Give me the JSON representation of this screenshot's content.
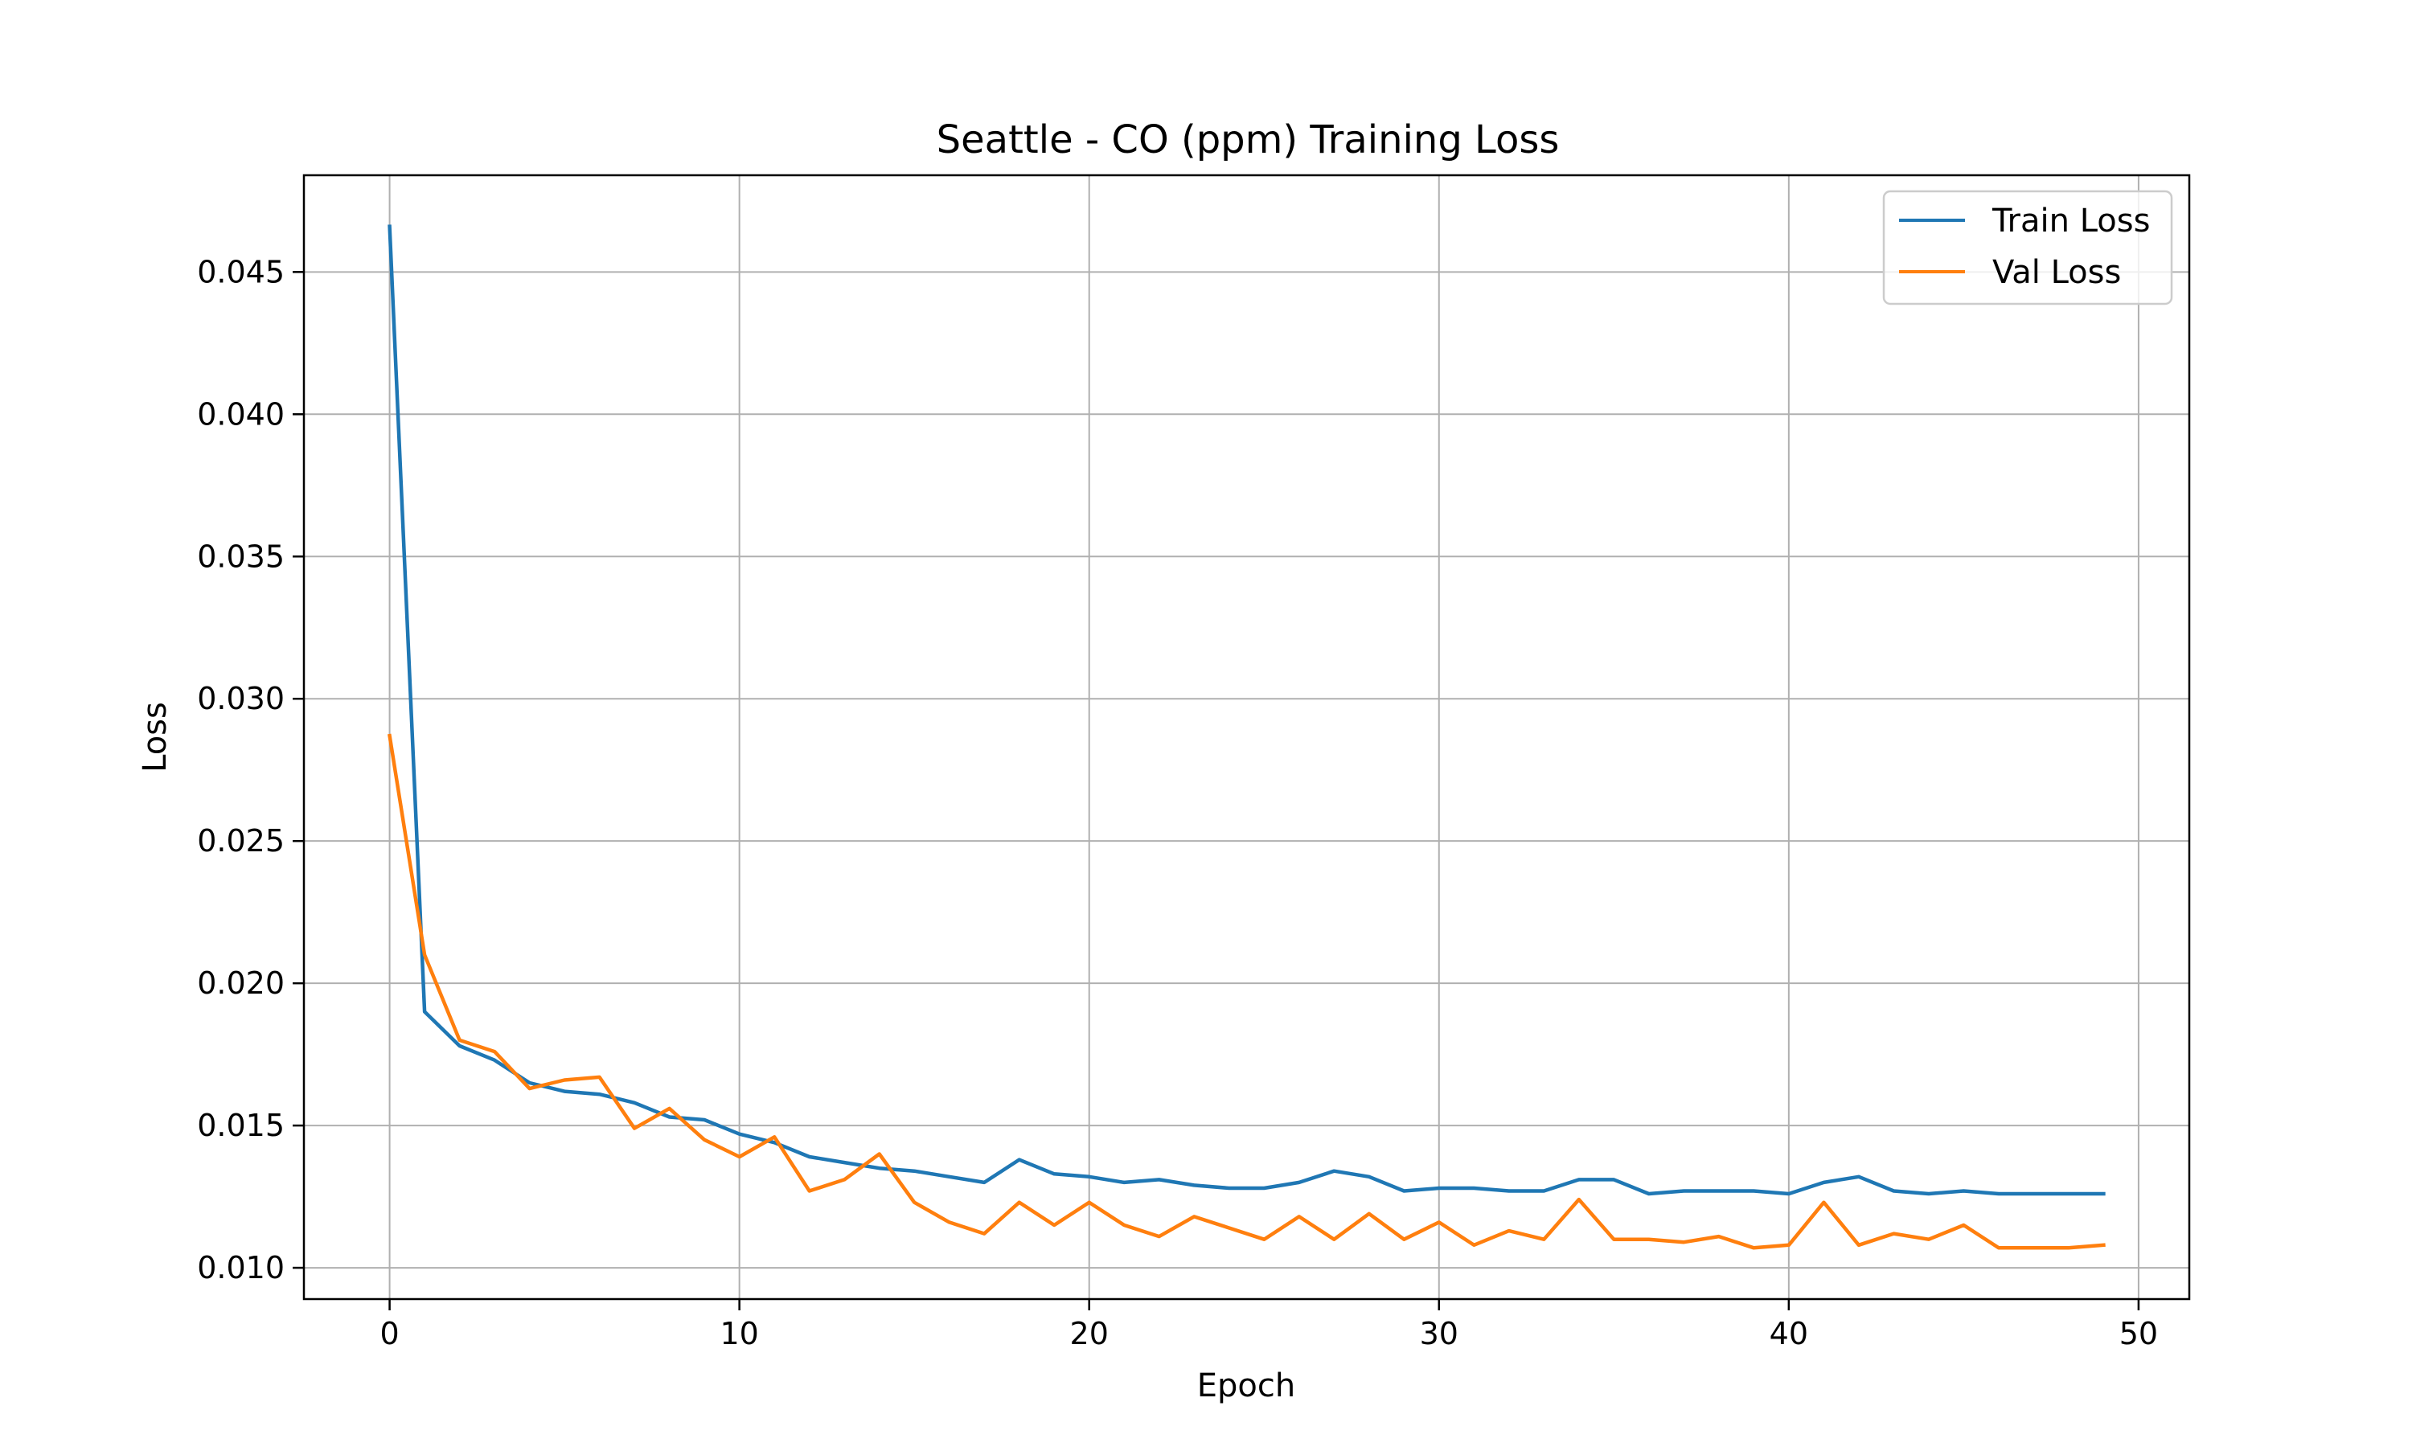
{
  "chart_data": {
    "type": "line",
    "title": "Seattle - CO (ppm) Training Loss",
    "xlabel": "Epoch",
    "ylabel": "Loss",
    "xlim": [
      -2.45,
      51.45
    ],
    "ylim": [
      0.0089,
      0.0484
    ],
    "xticks": [
      0,
      10,
      20,
      30,
      40,
      50
    ],
    "yticks": [
      0.01,
      0.015,
      0.02,
      0.025,
      0.03,
      0.035,
      0.04,
      0.045
    ],
    "ytick_labels": [
      "0.010",
      "0.015",
      "0.020",
      "0.025",
      "0.030",
      "0.035",
      "0.040",
      "0.045"
    ],
    "grid": true,
    "legend_position": "top-right",
    "x": [
      0,
      1,
      2,
      3,
      4,
      5,
      6,
      7,
      8,
      9,
      10,
      11,
      12,
      13,
      14,
      15,
      16,
      17,
      18,
      19,
      20,
      21,
      22,
      23,
      24,
      25,
      26,
      27,
      28,
      29,
      30,
      31,
      32,
      33,
      34,
      35,
      36,
      37,
      38,
      39,
      40,
      41,
      42,
      43,
      44,
      45,
      46,
      47,
      48,
      49
    ],
    "series": [
      {
        "name": "Train Loss",
        "color": "#1f77b4",
        "values": [
          0.0466,
          0.019,
          0.0178,
          0.0173,
          0.0165,
          0.0162,
          0.0161,
          0.0158,
          0.0153,
          0.0152,
          0.0147,
          0.0144,
          0.0139,
          0.0137,
          0.0135,
          0.0134,
          0.0132,
          0.013,
          0.0138,
          0.0133,
          0.0132,
          0.013,
          0.0131,
          0.0129,
          0.0128,
          0.0128,
          0.013,
          0.0134,
          0.0132,
          0.0127,
          0.0128,
          0.0128,
          0.0127,
          0.0127,
          0.0131,
          0.0131,
          0.0126,
          0.0127,
          0.0127,
          0.0127,
          0.0126,
          0.013,
          0.0132,
          0.0127,
          0.0126,
          0.0127,
          0.0126,
          0.0126,
          0.0126,
          0.0126
        ]
      },
      {
        "name": "Val Loss",
        "color": "#ff7f0e",
        "values": [
          0.0287,
          0.021,
          0.018,
          0.0176,
          0.0163,
          0.0166,
          0.0167,
          0.0149,
          0.0156,
          0.0145,
          0.0139,
          0.0146,
          0.0127,
          0.0131,
          0.014,
          0.0123,
          0.0116,
          0.0112,
          0.0123,
          0.0115,
          0.0123,
          0.0115,
          0.0111,
          0.0118,
          0.0114,
          0.011,
          0.0118,
          0.011,
          0.0119,
          0.011,
          0.0116,
          0.0108,
          0.0113,
          0.011,
          0.0124,
          0.011,
          0.011,
          0.0109,
          0.0111,
          0.0107,
          0.0108,
          0.0123,
          0.0108,
          0.0112,
          0.011,
          0.0115,
          0.0107,
          0.0107,
          0.0107,
          0.0108
        ]
      }
    ]
  }
}
